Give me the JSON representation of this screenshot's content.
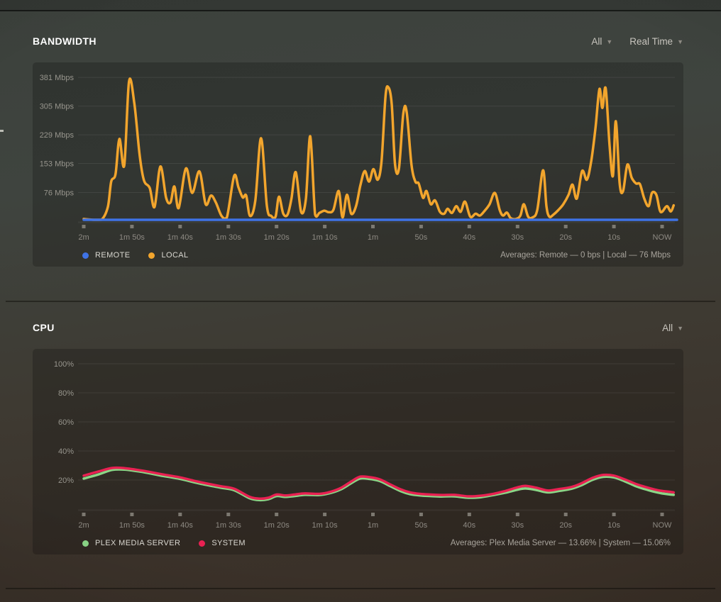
{
  "bandwidth": {
    "title": "BANDWIDTH",
    "filters": [
      {
        "label": "All"
      },
      {
        "label": "Real Time"
      }
    ],
    "legend": [
      {
        "label": "REMOTE",
        "color": "#3f73e6"
      },
      {
        "label": "LOCAL",
        "color": "#f2a52d"
      }
    ],
    "averages": "Averages: Remote — 0 bps | Local — 76 Mbps"
  },
  "cpu": {
    "title": "CPU",
    "filters": [
      {
        "label": "All"
      }
    ],
    "legend": [
      {
        "label": "PLEX MEDIA SERVER",
        "color": "#8bd687"
      },
      {
        "label": "SYSTEM",
        "color": "#e82152"
      }
    ],
    "averages": "Averages: Plex Media Server — 13.66% | System — 15.06%"
  },
  "chart_data": [
    {
      "type": "line",
      "title": "Bandwidth",
      "ylabel": "Mbps",
      "x_unit": "seconds ago",
      "x_range": [
        120,
        -2.4
      ],
      "y_range": [
        0,
        415
      ],
      "grid": true,
      "xticks": [
        "2m",
        "1m 50s",
        "1m 40s",
        "1m 30s",
        "1m 20s",
        "1m 10s",
        "1m",
        "50s",
        "40s",
        "30s",
        "20s",
        "10s",
        "NOW"
      ],
      "yticks": [
        {
          "value": 76,
          "label": "76 Mbps"
        },
        {
          "value": 153,
          "label": "153 Mbps"
        },
        {
          "value": 229,
          "label": "229 Mbps"
        },
        {
          "value": 305,
          "label": "305 Mbps"
        },
        {
          "value": 381,
          "label": "381 Mbps"
        }
      ],
      "series": [
        {
          "name": "Local",
          "color": "#f2a52d",
          "width": 3.5,
          "points": [
            [
              120,
              6
            ],
            [
              118,
              3
            ],
            [
              116.3,
              4
            ],
            [
              115,
              38
            ],
            [
              114.3,
              105
            ],
            [
              113.4,
              125
            ],
            [
              112.6,
              218
            ],
            [
              111.6,
              148
            ],
            [
              110.6,
              370
            ],
            [
              109.5,
              312
            ],
            [
              108.4,
              175
            ],
            [
              107.5,
              108
            ],
            [
              106.3,
              88
            ],
            [
              105.3,
              38
            ],
            [
              104.1,
              145
            ],
            [
              102.9,
              62
            ],
            [
              102,
              50
            ],
            [
              101.2,
              92
            ],
            [
              100.3,
              35
            ],
            [
              98.8,
              140
            ],
            [
              97.5,
              75
            ],
            [
              96,
              132
            ],
            [
              94.7,
              45
            ],
            [
              93.6,
              68
            ],
            [
              92.6,
              50
            ],
            [
              91.4,
              14
            ],
            [
              90.3,
              10
            ],
            [
              88.8,
              120
            ],
            [
              87.9,
              90
            ],
            [
              87,
              63
            ],
            [
              86.3,
              68
            ],
            [
              85.5,
              14
            ],
            [
              84.4,
              55
            ],
            [
              83.2,
              220
            ],
            [
              82,
              40
            ],
            [
              81.1,
              14
            ],
            [
              80.2,
              12
            ],
            [
              79.5,
              65
            ],
            [
              78.6,
              20
            ],
            [
              77.7,
              18
            ],
            [
              76.9,
              60
            ],
            [
              76,
              130
            ],
            [
              74.9,
              25
            ],
            [
              73.9,
              60
            ],
            [
              73,
              225
            ],
            [
              72,
              18
            ],
            [
              71.1,
              22
            ],
            [
              70.1,
              28
            ],
            [
              69.2,
              24
            ],
            [
              68.2,
              30
            ],
            [
              67.1,
              80
            ],
            [
              66.3,
              10
            ],
            [
              65.4,
              70
            ],
            [
              64.5,
              20
            ],
            [
              63.5,
              40
            ],
            [
              62.6,
              95
            ],
            [
              61.7,
              133
            ],
            [
              60.8,
              105
            ],
            [
              59.9,
              138
            ],
            [
              59,
              110
            ],
            [
              58.2,
              160
            ],
            [
              57.4,
              330
            ],
            [
              56.8,
              355
            ],
            [
              56.1,
              310
            ],
            [
              55.4,
              150
            ],
            [
              54.6,
              140
            ],
            [
              53.7,
              285
            ],
            [
              53,
              290
            ],
            [
              52,
              150
            ],
            [
              51.2,
              105
            ],
            [
              50.5,
              100
            ],
            [
              49.6,
              62
            ],
            [
              48.9,
              80
            ],
            [
              48,
              45
            ],
            [
              47.1,
              55
            ],
            [
              46.1,
              25
            ],
            [
              45.2,
              20
            ],
            [
              44.5,
              33
            ],
            [
              43.6,
              22
            ],
            [
              42.7,
              40
            ],
            [
              41.8,
              25
            ],
            [
              40.9,
              52
            ],
            [
              39.8,
              12
            ],
            [
              38.7,
              20
            ],
            [
              37.8,
              15
            ],
            [
              36.8,
              28
            ],
            [
              35.8,
              45
            ],
            [
              34.7,
              75
            ],
            [
              33.7,
              30
            ],
            [
              33,
              15
            ],
            [
              32.2,
              23
            ],
            [
              31.4,
              8
            ],
            [
              30.3,
              6
            ],
            [
              29.4,
              15
            ],
            [
              28.7,
              45
            ],
            [
              27.8,
              12
            ],
            [
              26.9,
              10
            ],
            [
              25.9,
              30
            ],
            [
              24.7,
              135
            ],
            [
              24,
              40
            ],
            [
              23.4,
              12
            ],
            [
              22.5,
              18
            ],
            [
              21.5,
              30
            ],
            [
              20.5,
              45
            ],
            [
              19.4,
              70
            ],
            [
              18.6,
              97
            ],
            [
              17.7,
              60
            ],
            [
              16.6,
              133
            ],
            [
              15.6,
              110
            ],
            [
              14.7,
              160
            ],
            [
              13.8,
              250
            ],
            [
              13,
              350
            ],
            [
              12.4,
              300
            ],
            [
              11.7,
              352
            ],
            [
              10.9,
              200
            ],
            [
              10.2,
              120
            ],
            [
              9.6,
              265
            ],
            [
              8.8,
              100
            ],
            [
              8.1,
              80
            ],
            [
              7.2,
              150
            ],
            [
              6.3,
              115
            ],
            [
              5.4,
              100
            ],
            [
              4.6,
              98
            ],
            [
              3.7,
              60
            ],
            [
              2.8,
              40
            ],
            [
              2.1,
              75
            ],
            [
              1.2,
              70
            ],
            [
              0.5,
              30
            ],
            [
              0,
              25
            ],
            [
              -1,
              40
            ],
            [
              -1.8,
              26
            ],
            [
              -2.4,
              42
            ]
          ]
        },
        {
          "name": "Remote",
          "color": "#3f73e6",
          "width": 3.5,
          "points": [
            [
              120,
              0
            ],
            [
              90,
              0
            ],
            [
              60,
              0
            ],
            [
              30,
              0
            ],
            [
              0,
              0
            ],
            [
              -2.4,
              0
            ]
          ]
        }
      ]
    },
    {
      "type": "line",
      "title": "CPU",
      "ylabel": "%",
      "x_unit": "seconds ago",
      "x_range": [
        120,
        -2.4
      ],
      "y_range": [
        0,
        110
      ],
      "grid": true,
      "xticks": [
        "2m",
        "1m 50s",
        "1m 40s",
        "1m 30s",
        "1m 20s",
        "1m 10s",
        "1m",
        "50s",
        "40s",
        "30s",
        "20s",
        "10s",
        "NOW"
      ],
      "yticks": [
        {
          "value": 20,
          "label": "20%"
        },
        {
          "value": 40,
          "label": "40%"
        },
        {
          "value": 60,
          "label": "60%"
        },
        {
          "value": 80,
          "label": "80%"
        },
        {
          "value": 100,
          "label": "100%"
        }
      ],
      "series": [
        {
          "name": "Plex Media Server",
          "color": "#8bd687",
          "width": 3.5,
          "points": [
            [
              120,
              21
            ],
            [
              116.8,
              24
            ],
            [
              114.1,
              27
            ],
            [
              111.6,
              27.2
            ],
            [
              107.9,
              25.6
            ],
            [
              103.5,
              22.8
            ],
            [
              100,
              20.8
            ],
            [
              96.2,
              17.8
            ],
            [
              91.7,
              14.8
            ],
            [
              88.8,
              13
            ],
            [
              85.6,
              7.5
            ],
            [
              83.6,
              6.2
            ],
            [
              81.7,
              6.8
            ],
            [
              80,
              9
            ],
            [
              78.2,
              8.4
            ],
            [
              76.3,
              9
            ],
            [
              74.1,
              9.8
            ],
            [
              71.1,
              9.7
            ],
            [
              68.9,
              11
            ],
            [
              66.7,
              13.5
            ],
            [
              64.5,
              17.8
            ],
            [
              62.7,
              21
            ],
            [
              60.8,
              20.8
            ],
            [
              58.6,
              19.3
            ],
            [
              56.4,
              15.8
            ],
            [
              54.2,
              12.3
            ],
            [
              52.3,
              10.3
            ],
            [
              50.2,
              9.4
            ],
            [
              48,
              9
            ],
            [
              45.8,
              8.7
            ],
            [
              43.1,
              8.8
            ],
            [
              40.2,
              7.8
            ],
            [
              37.6,
              8.2
            ],
            [
              35,
              9.7
            ],
            [
              32.5,
              11.3
            ],
            [
              30.2,
              13.2
            ],
            [
              28.4,
              14.2
            ],
            [
              26.2,
              13.2
            ],
            [
              23.7,
              11.5
            ],
            [
              21.4,
              12.5
            ],
            [
              18.8,
              14
            ],
            [
              16.9,
              16.2
            ],
            [
              14.4,
              20.2
            ],
            [
              12.2,
              22.2
            ],
            [
              10,
              21.8
            ],
            [
              7.8,
              19.2
            ],
            [
              5.2,
              15.5
            ],
            [
              3,
              13.2
            ],
            [
              1.2,
              11.6
            ],
            [
              0,
              10.8
            ],
            [
              -1.8,
              10
            ],
            [
              -2.4,
              9.8
            ]
          ]
        },
        {
          "name": "System",
          "color": "#e82152",
          "width": 3.5,
          "points": [
            [
              120,
              23
            ],
            [
              116.8,
              26
            ],
            [
              114.1,
              28.3
            ],
            [
              111.6,
              28.2
            ],
            [
              107.9,
              26.5
            ],
            [
              103.5,
              23.8
            ],
            [
              100,
              21.8
            ],
            [
              96.2,
              18.8
            ],
            [
              91.7,
              15.8
            ],
            [
              88.8,
              14
            ],
            [
              85.6,
              8.5
            ],
            [
              83.6,
              7.2
            ],
            [
              81.7,
              7.8
            ],
            [
              80,
              10
            ],
            [
              78.2,
              9.4
            ],
            [
              76.3,
              10
            ],
            [
              74.1,
              10.8
            ],
            [
              71.1,
              10.5
            ],
            [
              68.9,
              11.8
            ],
            [
              66.7,
              14.5
            ],
            [
              64.5,
              19
            ],
            [
              62.7,
              22.3
            ],
            [
              60.8,
              22
            ],
            [
              58.6,
              20.5
            ],
            [
              56.4,
              17
            ],
            [
              54.2,
              13.5
            ],
            [
              52.3,
              11.5
            ],
            [
              50.2,
              10.5
            ],
            [
              48,
              10
            ],
            [
              45.8,
              9.7
            ],
            [
              43.1,
              9.8
            ],
            [
              40.2,
              8.8
            ],
            [
              37.6,
              9.2
            ],
            [
              35,
              10.5
            ],
            [
              32.5,
              12.5
            ],
            [
              30.2,
              14.8
            ],
            [
              28.4,
              16
            ],
            [
              26.2,
              14.8
            ],
            [
              23.7,
              12.8
            ],
            [
              21.4,
              13.8
            ],
            [
              18.8,
              15.2
            ],
            [
              16.9,
              17.5
            ],
            [
              14.4,
              21.5
            ],
            [
              12.2,
              23.5
            ],
            [
              10,
              23
            ],
            [
              7.8,
              20.5
            ],
            [
              5.2,
              17
            ],
            [
              3,
              14.8
            ],
            [
              1.2,
              13.2
            ],
            [
              0,
              12.5
            ],
            [
              -1.8,
              11.8
            ],
            [
              -2.4,
              11.5
            ]
          ]
        }
      ]
    }
  ]
}
